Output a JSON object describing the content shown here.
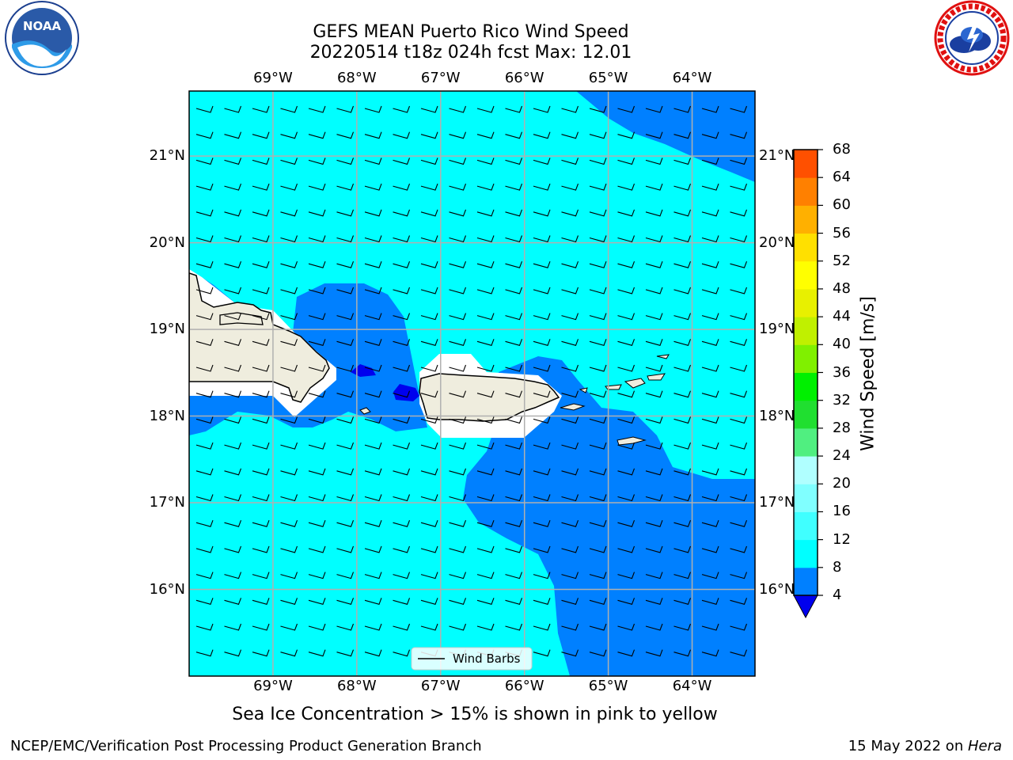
{
  "header": {
    "title_line1": "GEFS MEAN Puerto Rico Wind Speed",
    "title_line2": "20220514 t18z 024h fcst   Max: 12.01"
  },
  "logos": {
    "left": {
      "text": "NOAA",
      "icon": "noaa-logo"
    },
    "right": {
      "icon": "nws-logo"
    }
  },
  "map": {
    "lon_labels": [
      "69°W",
      "68°W",
      "67°W",
      "66°W",
      "65°W",
      "64°W"
    ],
    "lat_labels": [
      "21°N",
      "20°N",
      "19°N",
      "18°N",
      "17°N",
      "16°N"
    ],
    "lon_values": [
      -69,
      -68,
      -67,
      -66,
      -65,
      -64
    ],
    "lat_values": [
      21,
      20,
      19,
      18,
      17,
      16
    ],
    "extent": {
      "lon_min": -70,
      "lon_max": -63.25,
      "lat_min": 15,
      "lat_max": 21.75
    },
    "legend_label": "Wind Barbs",
    "land_color": "#efedde",
    "grid_color": "#b0b0b0"
  },
  "colorbar": {
    "label": "Wind Speed [m/s]",
    "ticks": [
      "68",
      "64",
      "60",
      "56",
      "52",
      "48",
      "44",
      "40",
      "36",
      "32",
      "28",
      "24",
      "20",
      "16",
      "12",
      "8",
      "4"
    ],
    "colors": [
      "#0000ee",
      "#0080ff",
      "#00ffff",
      "#40ffff",
      "#80ffff",
      "#b0ffff",
      "#50ef80",
      "#20df30",
      "#00f000",
      "#80f000",
      "#c0f000",
      "#e8f000",
      "#ffff00",
      "#ffe000",
      "#ffb000",
      "#ff8000",
      "#ff5000",
      "#ff2000",
      "#ff0000"
    ],
    "extend_color": "#0000ee"
  },
  "footnote": "Sea Ice Concentration > 15% is shown in pink to yellow",
  "footer": {
    "left": "NCEP/EMC/Verification Post Processing Product Generation Branch",
    "right_date": "15 May 2022 on ",
    "right_host": "Hera"
  }
}
